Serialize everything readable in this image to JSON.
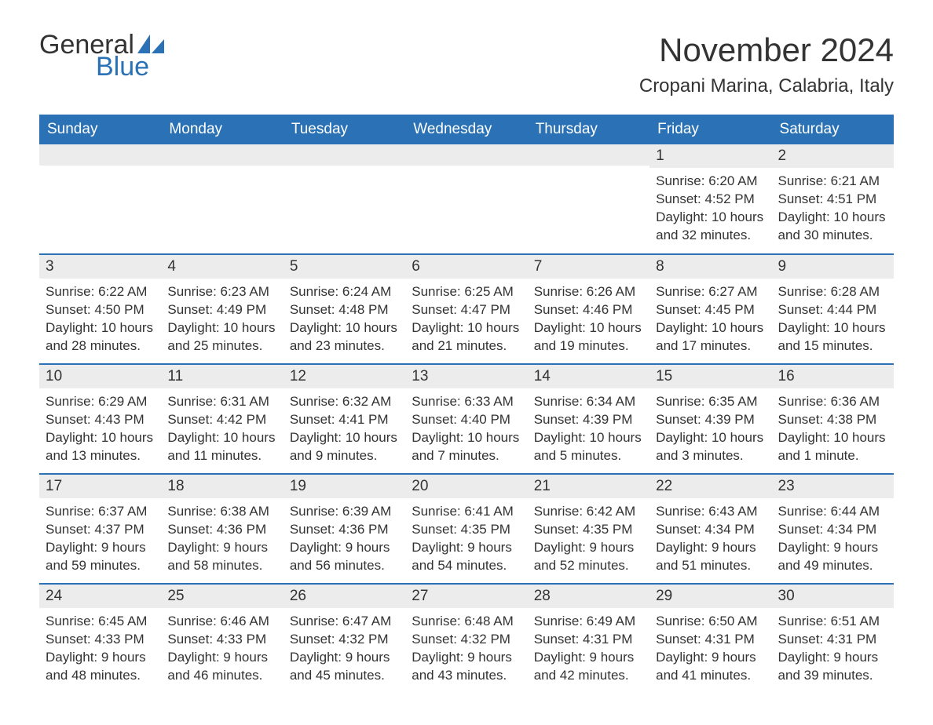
{
  "brand": {
    "word1": "General",
    "word2": "Blue"
  },
  "title": "November 2024",
  "location": "Cropani Marina, Calabria, Italy",
  "colors": {
    "header_bg": "#2a72b5",
    "header_text": "#ffffff",
    "daynum_bg": "#ececec",
    "border": "#2a72b5",
    "text": "#333333",
    "background": "#ffffff"
  },
  "weekdays": [
    "Sunday",
    "Monday",
    "Tuesday",
    "Wednesday",
    "Thursday",
    "Friday",
    "Saturday"
  ],
  "weeks": [
    [
      null,
      null,
      null,
      null,
      null,
      {
        "n": "1",
        "sunrise": "Sunrise: 6:20 AM",
        "sunset": "Sunset: 4:52 PM",
        "day1": "Daylight: 10 hours",
        "day2": "and 32 minutes."
      },
      {
        "n": "2",
        "sunrise": "Sunrise: 6:21 AM",
        "sunset": "Sunset: 4:51 PM",
        "day1": "Daylight: 10 hours",
        "day2": "and 30 minutes."
      }
    ],
    [
      {
        "n": "3",
        "sunrise": "Sunrise: 6:22 AM",
        "sunset": "Sunset: 4:50 PM",
        "day1": "Daylight: 10 hours",
        "day2": "and 28 minutes."
      },
      {
        "n": "4",
        "sunrise": "Sunrise: 6:23 AM",
        "sunset": "Sunset: 4:49 PM",
        "day1": "Daylight: 10 hours",
        "day2": "and 25 minutes."
      },
      {
        "n": "5",
        "sunrise": "Sunrise: 6:24 AM",
        "sunset": "Sunset: 4:48 PM",
        "day1": "Daylight: 10 hours",
        "day2": "and 23 minutes."
      },
      {
        "n": "6",
        "sunrise": "Sunrise: 6:25 AM",
        "sunset": "Sunset: 4:47 PM",
        "day1": "Daylight: 10 hours",
        "day2": "and 21 minutes."
      },
      {
        "n": "7",
        "sunrise": "Sunrise: 6:26 AM",
        "sunset": "Sunset: 4:46 PM",
        "day1": "Daylight: 10 hours",
        "day2": "and 19 minutes."
      },
      {
        "n": "8",
        "sunrise": "Sunrise: 6:27 AM",
        "sunset": "Sunset: 4:45 PM",
        "day1": "Daylight: 10 hours",
        "day2": "and 17 minutes."
      },
      {
        "n": "9",
        "sunrise": "Sunrise: 6:28 AM",
        "sunset": "Sunset: 4:44 PM",
        "day1": "Daylight: 10 hours",
        "day2": "and 15 minutes."
      }
    ],
    [
      {
        "n": "10",
        "sunrise": "Sunrise: 6:29 AM",
        "sunset": "Sunset: 4:43 PM",
        "day1": "Daylight: 10 hours",
        "day2": "and 13 minutes."
      },
      {
        "n": "11",
        "sunrise": "Sunrise: 6:31 AM",
        "sunset": "Sunset: 4:42 PM",
        "day1": "Daylight: 10 hours",
        "day2": "and 11 minutes."
      },
      {
        "n": "12",
        "sunrise": "Sunrise: 6:32 AM",
        "sunset": "Sunset: 4:41 PM",
        "day1": "Daylight: 10 hours",
        "day2": "and 9 minutes."
      },
      {
        "n": "13",
        "sunrise": "Sunrise: 6:33 AM",
        "sunset": "Sunset: 4:40 PM",
        "day1": "Daylight: 10 hours",
        "day2": "and 7 minutes."
      },
      {
        "n": "14",
        "sunrise": "Sunrise: 6:34 AM",
        "sunset": "Sunset: 4:39 PM",
        "day1": "Daylight: 10 hours",
        "day2": "and 5 minutes."
      },
      {
        "n": "15",
        "sunrise": "Sunrise: 6:35 AM",
        "sunset": "Sunset: 4:39 PM",
        "day1": "Daylight: 10 hours",
        "day2": "and 3 minutes."
      },
      {
        "n": "16",
        "sunrise": "Sunrise: 6:36 AM",
        "sunset": "Sunset: 4:38 PM",
        "day1": "Daylight: 10 hours",
        "day2": "and 1 minute."
      }
    ],
    [
      {
        "n": "17",
        "sunrise": "Sunrise: 6:37 AM",
        "sunset": "Sunset: 4:37 PM",
        "day1": "Daylight: 9 hours",
        "day2": "and 59 minutes."
      },
      {
        "n": "18",
        "sunrise": "Sunrise: 6:38 AM",
        "sunset": "Sunset: 4:36 PM",
        "day1": "Daylight: 9 hours",
        "day2": "and 58 minutes."
      },
      {
        "n": "19",
        "sunrise": "Sunrise: 6:39 AM",
        "sunset": "Sunset: 4:36 PM",
        "day1": "Daylight: 9 hours",
        "day2": "and 56 minutes."
      },
      {
        "n": "20",
        "sunrise": "Sunrise: 6:41 AM",
        "sunset": "Sunset: 4:35 PM",
        "day1": "Daylight: 9 hours",
        "day2": "and 54 minutes."
      },
      {
        "n": "21",
        "sunrise": "Sunrise: 6:42 AM",
        "sunset": "Sunset: 4:35 PM",
        "day1": "Daylight: 9 hours",
        "day2": "and 52 minutes."
      },
      {
        "n": "22",
        "sunrise": "Sunrise: 6:43 AM",
        "sunset": "Sunset: 4:34 PM",
        "day1": "Daylight: 9 hours",
        "day2": "and 51 minutes."
      },
      {
        "n": "23",
        "sunrise": "Sunrise: 6:44 AM",
        "sunset": "Sunset: 4:34 PM",
        "day1": "Daylight: 9 hours",
        "day2": "and 49 minutes."
      }
    ],
    [
      {
        "n": "24",
        "sunrise": "Sunrise: 6:45 AM",
        "sunset": "Sunset: 4:33 PM",
        "day1": "Daylight: 9 hours",
        "day2": "and 48 minutes."
      },
      {
        "n": "25",
        "sunrise": "Sunrise: 6:46 AM",
        "sunset": "Sunset: 4:33 PM",
        "day1": "Daylight: 9 hours",
        "day2": "and 46 minutes."
      },
      {
        "n": "26",
        "sunrise": "Sunrise: 6:47 AM",
        "sunset": "Sunset: 4:32 PM",
        "day1": "Daylight: 9 hours",
        "day2": "and 45 minutes."
      },
      {
        "n": "27",
        "sunrise": "Sunrise: 6:48 AM",
        "sunset": "Sunset: 4:32 PM",
        "day1": "Daylight: 9 hours",
        "day2": "and 43 minutes."
      },
      {
        "n": "28",
        "sunrise": "Sunrise: 6:49 AM",
        "sunset": "Sunset: 4:31 PM",
        "day1": "Daylight: 9 hours",
        "day2": "and 42 minutes."
      },
      {
        "n": "29",
        "sunrise": "Sunrise: 6:50 AM",
        "sunset": "Sunset: 4:31 PM",
        "day1": "Daylight: 9 hours",
        "day2": "and 41 minutes."
      },
      {
        "n": "30",
        "sunrise": "Sunrise: 6:51 AM",
        "sunset": "Sunset: 4:31 PM",
        "day1": "Daylight: 9 hours",
        "day2": "and 39 minutes."
      }
    ]
  ]
}
